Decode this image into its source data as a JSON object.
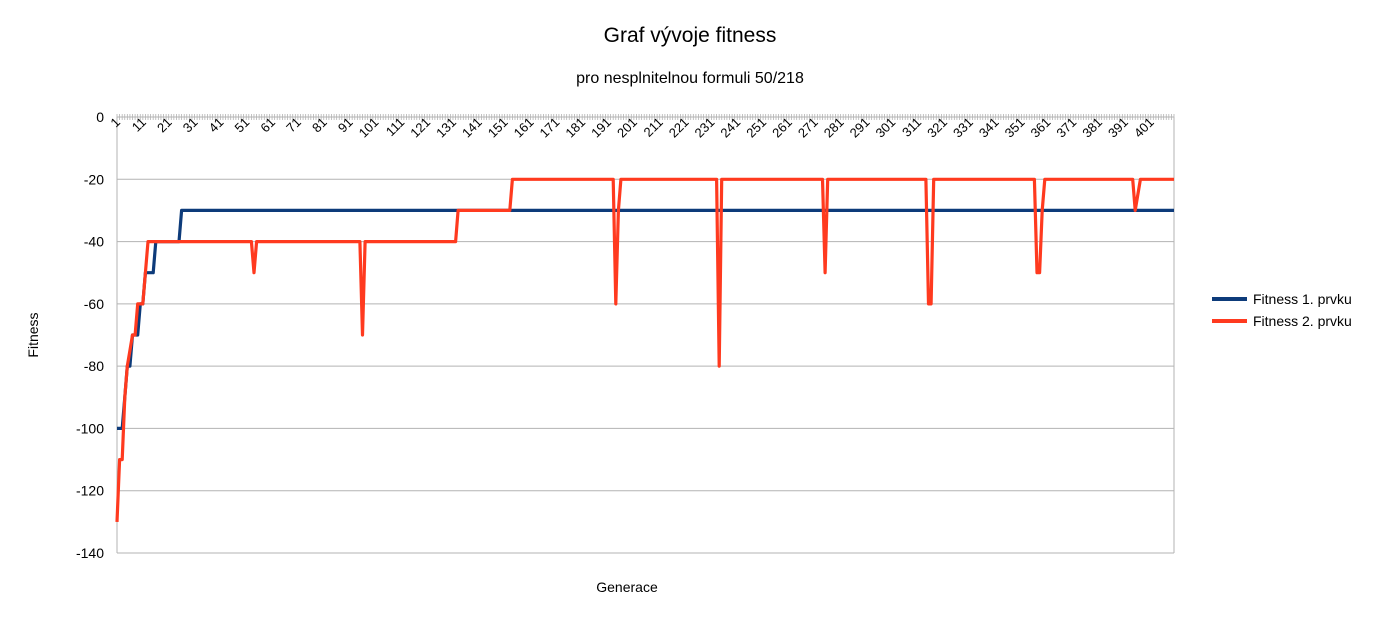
{
  "chart_data": {
    "type": "line",
    "title": "Graf vývoje fitness",
    "subtitle": "pro nesplnitelnou formuli 50/218",
    "xlabel": "Generace",
    "ylabel": "Fitness",
    "ylim": [
      -140,
      0
    ],
    "y_ticks": [
      0,
      -20,
      -40,
      -60,
      -80,
      -100,
      -120,
      -140
    ],
    "x_range": [
      1,
      410
    ],
    "x_ticks": [
      1,
      11,
      21,
      31,
      41,
      51,
      61,
      71,
      81,
      91,
      101,
      111,
      121,
      131,
      141,
      151,
      161,
      171,
      181,
      191,
      201,
      211,
      221,
      231,
      241,
      251,
      261,
      271,
      281,
      291,
      301,
      311,
      321,
      331,
      341,
      351,
      361,
      371,
      381,
      391,
      401
    ],
    "grid": "horizontal",
    "legend_position": "right",
    "series": [
      {
        "name": "Fitness 1. prvku",
        "color": "#0d3b7a",
        "points": [
          [
            1,
            -100
          ],
          [
            3,
            -100
          ],
          [
            4,
            -90
          ],
          [
            5,
            -80
          ],
          [
            6,
            -80
          ],
          [
            7,
            -70
          ],
          [
            9,
            -70
          ],
          [
            10,
            -60
          ],
          [
            11,
            -60
          ],
          [
            12,
            -50
          ],
          [
            15,
            -50
          ],
          [
            16,
            -40
          ],
          [
            25,
            -40
          ],
          [
            26,
            -30
          ],
          [
            410,
            -30
          ]
        ]
      },
      {
        "name": "Fitness 2. prvku",
        "color": "#ff3a1f",
        "points": [
          [
            1,
            -130
          ],
          [
            2,
            -110
          ],
          [
            3,
            -110
          ],
          [
            4,
            -90
          ],
          [
            5,
            -80
          ],
          [
            6,
            -75
          ],
          [
            7,
            -70
          ],
          [
            8,
            -70
          ],
          [
            9,
            -60
          ],
          [
            11,
            -60
          ],
          [
            12,
            -50
          ],
          [
            13,
            -40
          ],
          [
            53,
            -40
          ],
          [
            54,
            -50
          ],
          [
            55,
            -40
          ],
          [
            95,
            -40
          ],
          [
            96,
            -70
          ],
          [
            97,
            -40
          ],
          [
            132,
            -40
          ],
          [
            133,
            -30
          ],
          [
            153,
            -30
          ],
          [
            154,
            -20
          ],
          [
            193,
            -20
          ],
          [
            194,
            -60
          ],
          [
            195,
            -30
          ],
          [
            196,
            -20
          ],
          [
            233,
            -20
          ],
          [
            234,
            -80
          ],
          [
            235,
            -20
          ],
          [
            274,
            -20
          ],
          [
            275,
            -50
          ],
          [
            276,
            -20
          ],
          [
            314,
            -20
          ],
          [
            315,
            -60
          ],
          [
            316,
            -60
          ],
          [
            317,
            -20
          ],
          [
            356,
            -20
          ],
          [
            357,
            -50
          ],
          [
            358,
            -50
          ],
          [
            359,
            -30
          ],
          [
            360,
            -20
          ],
          [
            394,
            -20
          ],
          [
            395,
            -30
          ],
          [
            397,
            -20
          ],
          [
            410,
            -20
          ]
        ]
      }
    ]
  }
}
